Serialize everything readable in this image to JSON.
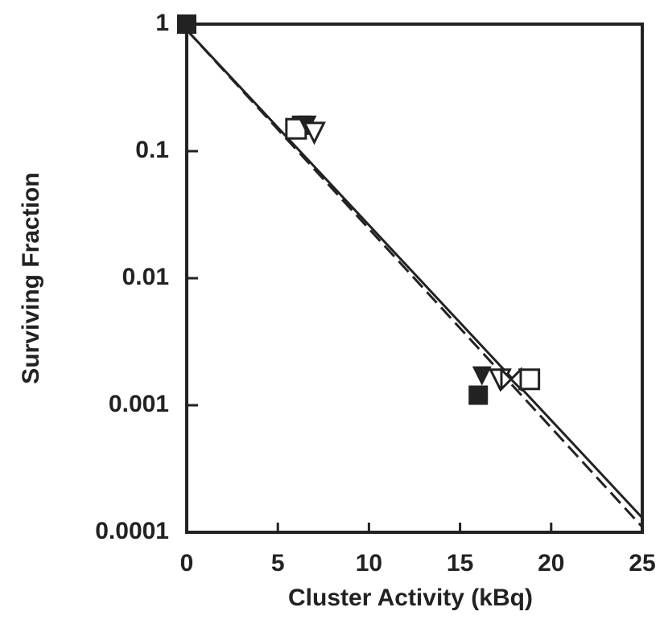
{
  "chart_data": {
    "type": "scatter",
    "xlabel": "Cluster Activity (kBq)",
    "ylabel": "Surviving Fraction",
    "xlim": [
      0,
      25
    ],
    "ylim": [
      0.0001,
      1
    ],
    "log_y": true,
    "xticks": [
      0,
      5,
      10,
      15,
      20,
      25
    ],
    "yticks": [
      0.0001,
      0.001,
      0.01,
      0.1,
      1
    ],
    "series": [
      {
        "marker": "filled-square",
        "color": "#222222",
        "x": [
          0,
          6.3,
          16
        ],
        "values": [
          1,
          0.16,
          0.0012
        ]
      },
      {
        "marker": "open-square",
        "color": "#222222",
        "x": [
          6,
          18.8
        ],
        "values": [
          0.15,
          0.0016
        ]
      },
      {
        "marker": "filled-triangle",
        "color": "#222222",
        "x": [
          6.6,
          16.2
        ],
        "values": [
          0.16,
          0.0017
        ]
      },
      {
        "marker": "open-triangle",
        "color": "#222222",
        "x": [
          7,
          17.2
        ],
        "values": [
          0.14,
          0.0016
        ]
      },
      {
        "marker": "bowtie",
        "color": "#222222",
        "x": [
          17.8
        ],
        "values": [
          0.0016
        ]
      }
    ],
    "lines": [
      {
        "style": "solid",
        "color": "#222222",
        "x": [
          0,
          25
        ],
        "values": [
          0.9,
          0.00013
        ]
      },
      {
        "style": "dashed",
        "color": "#222222",
        "x": [
          0,
          25
        ],
        "values": [
          0.9,
          0.00011
        ]
      }
    ]
  }
}
